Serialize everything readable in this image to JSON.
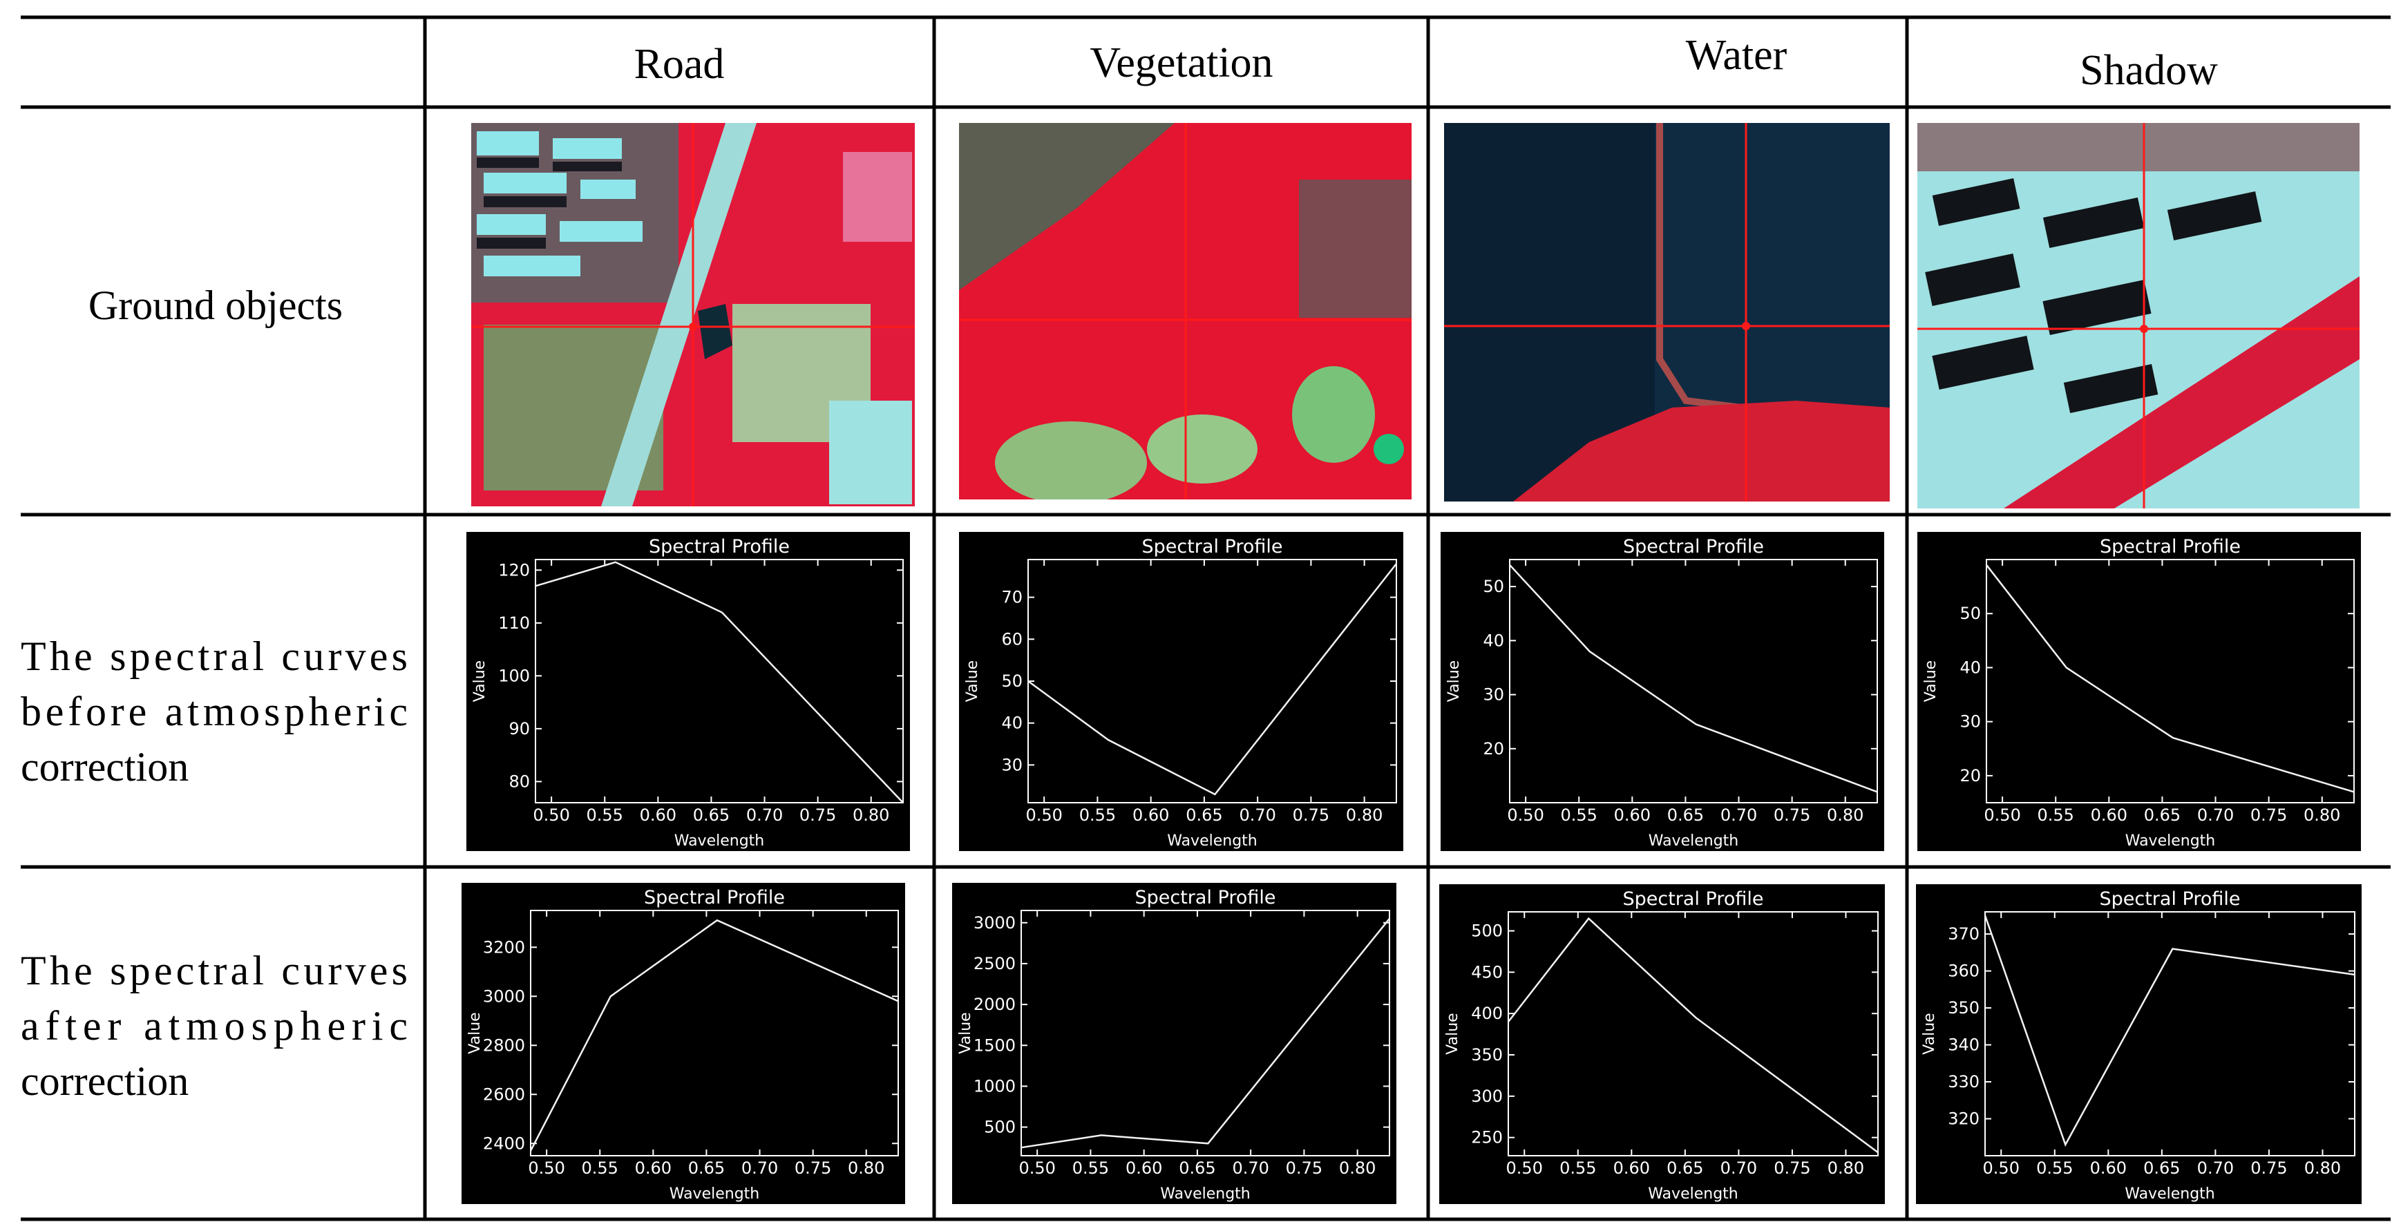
{
  "columns": [
    "Road",
    "Vegetation",
    "Water",
    "Shadow"
  ],
  "rows": {
    "ground": "Ground objects",
    "before": [
      "The spectral curves",
      "before atmospheric",
      "correction"
    ],
    "after": [
      "The spectral curves",
      "after atmospheric",
      "correction"
    ]
  },
  "plot_text": {
    "title": "Spectral Profile",
    "xlabel": "Wavelength",
    "ylabel": "Value"
  },
  "images": [
    {
      "name": "road",
      "scene": "false-color satellite patch with diagonal road, red vegetation and cyan buildings, red crosshair"
    },
    {
      "name": "vegetation",
      "scene": "false-color satellite patch dominated by red vegetation with green patches, red crosshair"
    },
    {
      "name": "water",
      "scene": "dark blue water body with shoreline and red vegetation at bottom, red crosshair"
    },
    {
      "name": "shadow",
      "scene": "cyan buildings with dark shadows and red diagonal vegetation strip, red crosshair"
    }
  ],
  "chart_data": [
    {
      "type": "line",
      "object": "Road",
      "stage": "before",
      "title": "Spectral Profile",
      "xlabel": "Wavelength",
      "ylabel": "Value",
      "x": [
        0.485,
        0.56,
        0.66,
        0.83
      ],
      "y": [
        117,
        121.5,
        112,
        76
      ],
      "xlim": [
        0.485,
        0.83
      ],
      "ylim": [
        76,
        122
      ],
      "xticks": [
        0.5,
        0.55,
        0.6,
        0.65,
        0.7,
        0.75,
        0.8
      ],
      "yticks": [
        80,
        90,
        100,
        110,
        120
      ]
    },
    {
      "type": "line",
      "object": "Vegetation",
      "stage": "before",
      "title": "Spectral Profile",
      "xlabel": "Wavelength",
      "ylabel": "Value",
      "x": [
        0.485,
        0.56,
        0.66,
        0.83
      ],
      "y": [
        50,
        36,
        23,
        78
      ],
      "xlim": [
        0.485,
        0.83
      ],
      "ylim": [
        21,
        79
      ],
      "xticks": [
        0.5,
        0.55,
        0.6,
        0.65,
        0.7,
        0.75,
        0.8
      ],
      "yticks": [
        30,
        40,
        50,
        60,
        70
      ]
    },
    {
      "type": "line",
      "object": "Water",
      "stage": "before",
      "title": "Spectral Profile",
      "xlabel": "Wavelength",
      "ylabel": "Value",
      "x": [
        0.485,
        0.56,
        0.66,
        0.83
      ],
      "y": [
        54,
        38,
        24.5,
        12
      ],
      "xlim": [
        0.485,
        0.83
      ],
      "ylim": [
        10,
        55
      ],
      "xticks": [
        0.5,
        0.55,
        0.6,
        0.65,
        0.7,
        0.75,
        0.8
      ],
      "yticks": [
        20,
        30,
        40,
        50
      ]
    },
    {
      "type": "line",
      "object": "Shadow",
      "stage": "before",
      "title": "Spectral Profile",
      "xlabel": "Wavelength",
      "ylabel": "Value",
      "x": [
        0.485,
        0.56,
        0.66,
        0.83
      ],
      "y": [
        59,
        40,
        27,
        17
      ],
      "xlim": [
        0.485,
        0.83
      ],
      "ylim": [
        15,
        60
      ],
      "xticks": [
        0.5,
        0.55,
        0.6,
        0.65,
        0.7,
        0.75,
        0.8
      ],
      "yticks": [
        20,
        30,
        40,
        50
      ]
    },
    {
      "type": "line",
      "object": "Road",
      "stage": "after",
      "title": "Spectral Profile",
      "xlabel": "Wavelength",
      "ylabel": "Value",
      "x": [
        0.485,
        0.56,
        0.66,
        0.83
      ],
      "y": [
        2370,
        3000,
        3310,
        2980
      ],
      "xlim": [
        0.485,
        0.83
      ],
      "ylim": [
        2350,
        3350
      ],
      "xticks": [
        0.5,
        0.55,
        0.6,
        0.65,
        0.7,
        0.75,
        0.8
      ],
      "yticks": [
        2400,
        2600,
        2800,
        3000,
        3200
      ]
    },
    {
      "type": "line",
      "object": "Vegetation",
      "stage": "after",
      "title": "Spectral Profile",
      "xlabel": "Wavelength",
      "ylabel": "Value",
      "x": [
        0.485,
        0.56,
        0.66,
        0.83
      ],
      "y": [
        250,
        400,
        300,
        3050
      ],
      "xlim": [
        0.485,
        0.83
      ],
      "ylim": [
        150,
        3150
      ],
      "xticks": [
        0.5,
        0.55,
        0.6,
        0.65,
        0.7,
        0.75,
        0.8
      ],
      "yticks": [
        500,
        1000,
        1500,
        2000,
        2500,
        3000
      ]
    },
    {
      "type": "line",
      "object": "Water",
      "stage": "after",
      "title": "Spectral Profile",
      "xlabel": "Wavelength",
      "ylabel": "Value",
      "x": [
        0.485,
        0.56,
        0.66,
        0.83
      ],
      "y": [
        390,
        515,
        395,
        232
      ],
      "xlim": [
        0.485,
        0.83
      ],
      "ylim": [
        228,
        523
      ],
      "xticks": [
        0.5,
        0.55,
        0.6,
        0.65,
        0.7,
        0.75,
        0.8
      ],
      "yticks": [
        250,
        300,
        350,
        400,
        450,
        500
      ]
    },
    {
      "type": "line",
      "object": "Shadow",
      "stage": "after",
      "title": "Spectral Profile",
      "xlabel": "Wavelength",
      "ylabel": "Value",
      "x": [
        0.485,
        0.56,
        0.66,
        0.83
      ],
      "y": [
        375,
        313,
        366,
        359
      ],
      "xlim": [
        0.485,
        0.83
      ],
      "ylim": [
        310,
        376
      ],
      "xticks": [
        0.5,
        0.55,
        0.6,
        0.65,
        0.7,
        0.75,
        0.8
      ],
      "yticks": [
        320,
        330,
        340,
        350,
        360,
        370
      ]
    }
  ]
}
